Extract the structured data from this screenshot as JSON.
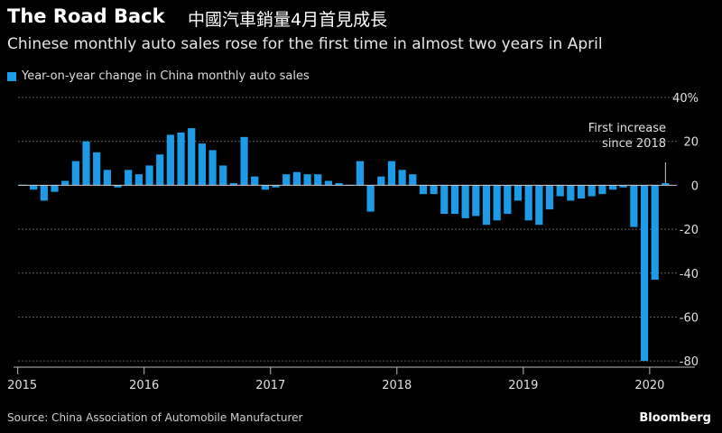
{
  "header": {
    "title": "The Road Back",
    "cn_title": "中國汽車銷量4月首見成長",
    "subtitle": "Chinese monthly auto sales rose for the first time in almost two years in April"
  },
  "legend": {
    "label": "Year-on-year change in China monthly auto sales",
    "color": "#1e9be6"
  },
  "annotation": {
    "line1": "First increase",
    "line2": "since 2018"
  },
  "footer": {
    "source": "Source: China Association of Automobile Manufacturer",
    "brand": "Bloomberg"
  },
  "colors": {
    "bar": "#1e9be6",
    "grid": "#5a5a5a",
    "zero": "#cccccc",
    "background": "#000000"
  },
  "chart_data": {
    "type": "bar",
    "x_start": "2015-01",
    "x_ticks": [
      "2015",
      "2016",
      "2017",
      "2018",
      "2019",
      "2020"
    ],
    "y_ticks": [
      40,
      20,
      0,
      -20,
      -40,
      -60,
      -80
    ],
    "y_tick_labels": [
      "40%",
      "20",
      "0",
      "-20",
      "-40",
      "-60",
      "-80"
    ],
    "ylim": [
      -82,
      40
    ],
    "ylabel": "",
    "xlabel": "",
    "series": [
      {
        "name": "Year-on-year change in China monthly auto sales",
        "values": [
          0,
          -2,
          -7,
          -3,
          2,
          11,
          20,
          15,
          7,
          -1,
          7,
          5,
          9,
          14,
          23,
          24,
          26,
          19,
          16,
          9,
          1,
          22,
          4,
          -2,
          -1,
          5,
          6,
          5,
          5,
          2,
          1,
          0,
          11,
          -12,
          4,
          11,
          7,
          5,
          -4,
          -4,
          -13,
          -13,
          -15,
          -14,
          -18,
          -16,
          -13,
          -7,
          -16,
          -18,
          -11,
          -5,
          -7,
          -6,
          -5,
          -4,
          -2,
          -1,
          -19,
          -80,
          -43,
          1
        ]
      }
    ]
  }
}
